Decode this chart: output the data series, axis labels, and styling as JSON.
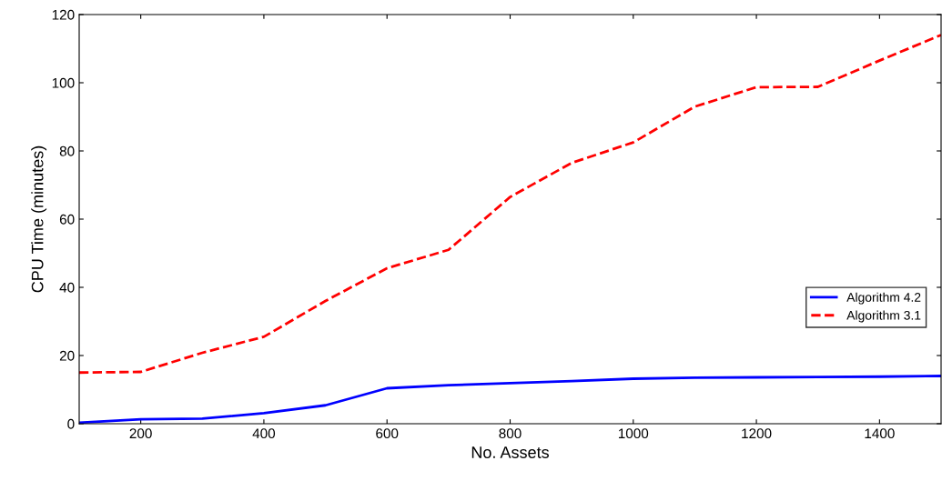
{
  "chart_data": {
    "type": "line",
    "xlabel": "No. Assets",
    "ylabel": "CPU Time (minutes)",
    "x": [
      100,
      200,
      300,
      400,
      500,
      600,
      700,
      800,
      900,
      1000,
      1100,
      1200,
      1300,
      1400,
      1500
    ],
    "series": [
      {
        "name": "Algorithm 4.2",
        "color": "#0000ff",
        "line_style": "solid",
        "values": [
          0.3,
          1.3,
          1.5,
          3.1,
          5.4,
          10.4,
          11.3,
          11.9,
          12.5,
          13.2,
          13.5,
          13.6,
          13.7,
          13.8,
          14
        ]
      },
      {
        "name": "Algorithm 3.1",
        "color": "#ff0000",
        "line_style": "dashed",
        "values": [
          15,
          15.2,
          20.8,
          25.5,
          36,
          45.6,
          51,
          66.5,
          76.5,
          82.5,
          93,
          98.7,
          98.8,
          106.5,
          114
        ]
      }
    ],
    "xlim": [
      100,
      1500
    ],
    "xticks": [
      200,
      400,
      600,
      800,
      1000,
      1200,
      1400
    ],
    "ylim": [
      0,
      120
    ],
    "yticks": [
      0,
      20,
      40,
      60,
      80,
      100,
      120
    ],
    "grid": false,
    "legend": "lower right",
    "marker": "none"
  }
}
